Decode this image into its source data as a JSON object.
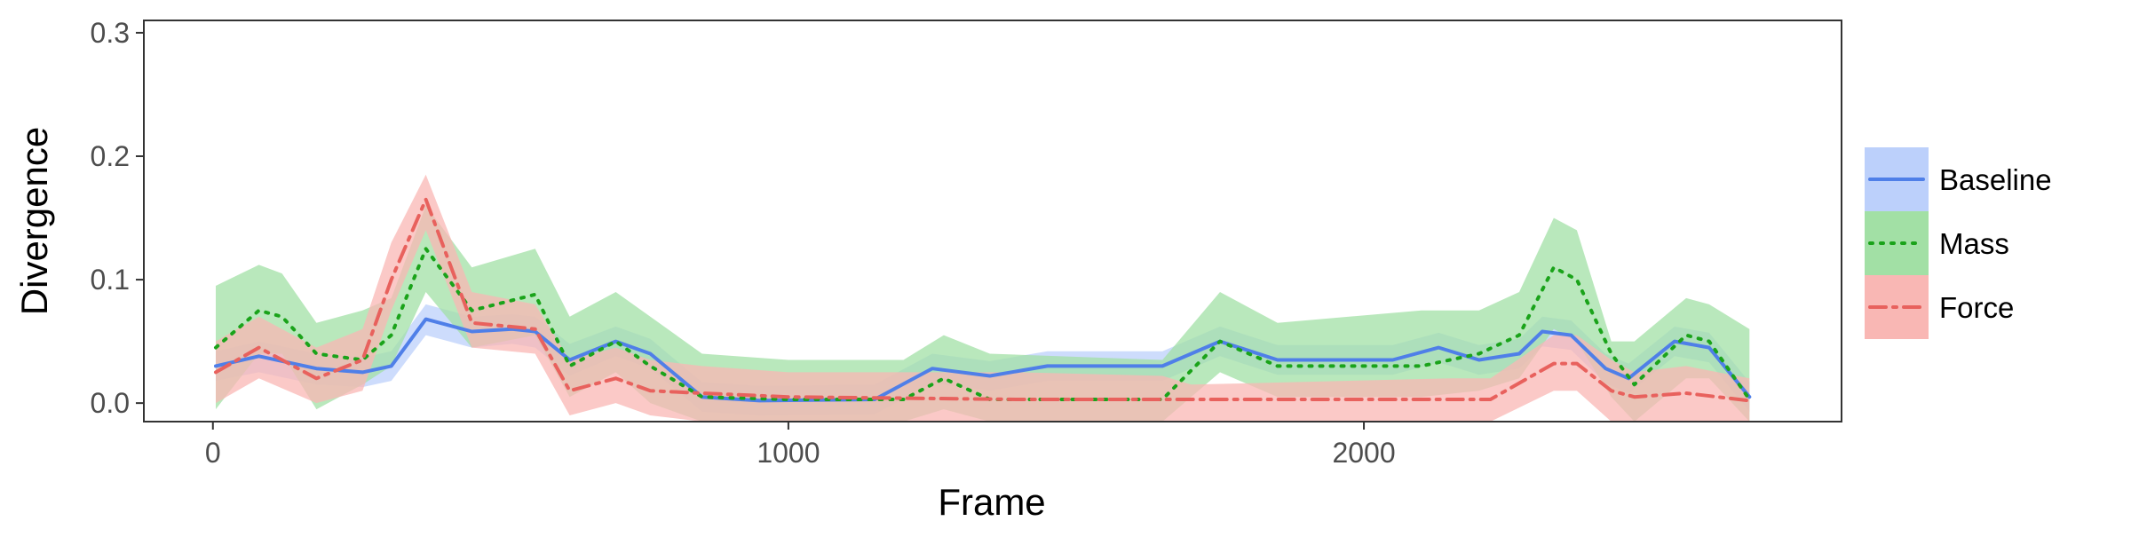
{
  "chart_data": {
    "type": "line",
    "xlabel": "Frame",
    "ylabel": "Divergence",
    "xlim": [
      -120,
      2830
    ],
    "ylim": [
      -0.015,
      0.31
    ],
    "x_ticks": [
      0,
      1000,
      2000
    ],
    "x_tick_labels": [
      "0",
      "1000",
      "2000"
    ],
    "y_ticks": [
      0.0,
      0.1,
      0.2,
      0.3
    ],
    "y_tick_labels": [
      "0.0",
      "0.1",
      "0.2",
      "0.3"
    ],
    "grid": false,
    "legend_position": "right",
    "series": [
      {
        "name": "Baseline",
        "color": "#4f7fe8",
        "band_color": "#bcd0fb",
        "line_style": "solid",
        "points": [
          [
            5,
            0.03,
            0.018,
            0.042
          ],
          [
            80,
            0.038,
            0.025,
            0.05
          ],
          [
            180,
            0.028,
            0.015,
            0.04
          ],
          [
            260,
            0.025,
            0.013,
            0.037
          ],
          [
            310,
            0.03,
            0.018,
            0.042
          ],
          [
            370,
            0.068,
            0.055,
            0.08
          ],
          [
            450,
            0.058,
            0.045,
            0.07
          ],
          [
            520,
            0.06,
            0.048,
            0.072
          ],
          [
            560,
            0.058,
            0.045,
            0.07
          ],
          [
            620,
            0.035,
            0.022,
            0.048
          ],
          [
            700,
            0.05,
            0.038,
            0.062
          ],
          [
            760,
            0.04,
            0.028,
            0.052
          ],
          [
            850,
            0.005,
            -0.007,
            0.017
          ],
          [
            950,
            0.002,
            -0.01,
            0.014
          ],
          [
            1150,
            0.003,
            -0.009,
            0.015
          ],
          [
            1250,
            0.028,
            0.016,
            0.04
          ],
          [
            1350,
            0.022,
            0.01,
            0.034
          ],
          [
            1450,
            0.03,
            0.018,
            0.042
          ],
          [
            1650,
            0.03,
            0.018,
            0.042
          ],
          [
            1750,
            0.05,
            0.038,
            0.062
          ],
          [
            1850,
            0.035,
            0.023,
            0.047
          ],
          [
            2050,
            0.035,
            0.023,
            0.047
          ],
          [
            2130,
            0.045,
            0.033,
            0.057
          ],
          [
            2200,
            0.035,
            0.023,
            0.047
          ],
          [
            2270,
            0.04,
            0.028,
            0.052
          ],
          [
            2310,
            0.058,
            0.046,
            0.07
          ],
          [
            2360,
            0.055,
            0.043,
            0.067
          ],
          [
            2420,
            0.028,
            0.016,
            0.04
          ],
          [
            2460,
            0.02,
            0.008,
            0.032
          ],
          [
            2540,
            0.05,
            0.038,
            0.062
          ],
          [
            2600,
            0.045,
            0.033,
            0.057
          ],
          [
            2670,
            0.005,
            -0.007,
            0.017
          ]
        ]
      },
      {
        "name": "Mass",
        "color": "#1aa31a",
        "band_color": "#a2e0a5",
        "line_style": "dotted",
        "points": [
          [
            5,
            0.045,
            -0.005,
            0.095
          ],
          [
            80,
            0.075,
            0.04,
            0.112
          ],
          [
            120,
            0.07,
            0.04,
            0.105
          ],
          [
            180,
            0.04,
            -0.005,
            0.065
          ],
          [
            260,
            0.035,
            0.015,
            0.075
          ],
          [
            310,
            0.055,
            0.03,
            0.085
          ],
          [
            370,
            0.125,
            0.09,
            0.16
          ],
          [
            450,
            0.075,
            0.045,
            0.11
          ],
          [
            560,
            0.088,
            0.055,
            0.125
          ],
          [
            620,
            0.03,
            0.005,
            0.07
          ],
          [
            700,
            0.05,
            0.025,
            0.09
          ],
          [
            760,
            0.03,
            0.0,
            0.07
          ],
          [
            850,
            0.005,
            -0.02,
            0.04
          ],
          [
            1000,
            0.003,
            -0.02,
            0.035
          ],
          [
            1200,
            0.003,
            -0.02,
            0.035
          ],
          [
            1270,
            0.02,
            -0.005,
            0.055
          ],
          [
            1350,
            0.003,
            -0.02,
            0.04
          ],
          [
            1650,
            0.003,
            -0.02,
            0.035
          ],
          [
            1750,
            0.05,
            0.025,
            0.09
          ],
          [
            1850,
            0.03,
            0.005,
            0.065
          ],
          [
            2100,
            0.03,
            0.005,
            0.075
          ],
          [
            2200,
            0.04,
            0.01,
            0.075
          ],
          [
            2270,
            0.055,
            0.02,
            0.09
          ],
          [
            2330,
            0.11,
            0.06,
            0.15
          ],
          [
            2370,
            0.1,
            0.05,
            0.14
          ],
          [
            2430,
            0.04,
            0.005,
            0.05
          ],
          [
            2470,
            0.015,
            -0.02,
            0.05
          ],
          [
            2560,
            0.055,
            0.02,
            0.085
          ],
          [
            2600,
            0.05,
            0.02,
            0.08
          ],
          [
            2670,
            0.003,
            -0.02,
            0.06
          ]
        ]
      },
      {
        "name": "Force",
        "color": "#e8615d",
        "band_color": "#f9b7b4",
        "line_style": "dashdot",
        "points": [
          [
            5,
            0.025,
            0.0,
            0.05
          ],
          [
            80,
            0.045,
            0.02,
            0.07
          ],
          [
            180,
            0.02,
            0.0,
            0.045
          ],
          [
            260,
            0.035,
            0.01,
            0.06
          ],
          [
            310,
            0.1,
            0.075,
            0.13
          ],
          [
            370,
            0.165,
            0.14,
            0.185
          ],
          [
            450,
            0.065,
            0.045,
            0.09
          ],
          [
            560,
            0.06,
            0.04,
            0.08
          ],
          [
            620,
            0.01,
            -0.01,
            0.035
          ],
          [
            700,
            0.02,
            0.0,
            0.045
          ],
          [
            760,
            0.01,
            -0.01,
            0.035
          ],
          [
            850,
            0.008,
            -0.015,
            0.03
          ],
          [
            1000,
            0.005,
            -0.015,
            0.025
          ],
          [
            1400,
            0.003,
            -0.015,
            0.025
          ],
          [
            1650,
            0.003,
            -0.015,
            0.022
          ],
          [
            1700,
            0.003,
            -0.015,
            0.015
          ],
          [
            2150,
            0.003,
            -0.015,
            0.02
          ],
          [
            2220,
            0.003,
            -0.015,
            0.02
          ],
          [
            2330,
            0.032,
            0.01,
            0.055
          ],
          [
            2370,
            0.032,
            0.01,
            0.055
          ],
          [
            2430,
            0.01,
            -0.015,
            0.035
          ],
          [
            2470,
            0.005,
            -0.015,
            0.025
          ],
          [
            2560,
            0.008,
            -0.015,
            0.03
          ],
          [
            2670,
            0.002,
            -0.015,
            0.02
          ]
        ]
      }
    ],
    "point_format": [
      "x",
      "y",
      "y_lower",
      "y_upper"
    ]
  }
}
